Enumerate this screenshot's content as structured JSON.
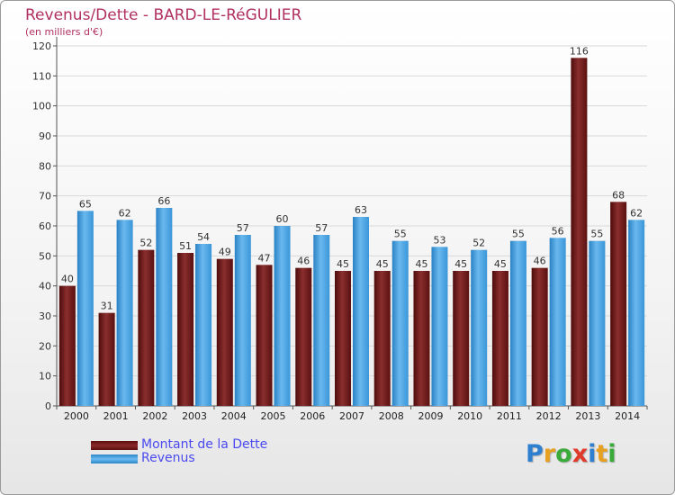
{
  "chart_data": {
    "type": "bar",
    "title": "Revenus/Dette - BARD-LE-RéGULIER",
    "subtitle": "(en milliers d'€)",
    "categories": [
      "2000",
      "2001",
      "2002",
      "2003",
      "2004",
      "2005",
      "2006",
      "2007",
      "2008",
      "2009",
      "2010",
      "2011",
      "2012",
      "2013",
      "2014"
    ],
    "series": [
      {
        "name": "Montant de la Dette",
        "color": "#7a1c1c",
        "values": [
          40,
          31,
          52,
          51,
          49,
          47,
          46,
          45,
          45,
          45,
          45,
          45,
          46,
          116,
          68
        ]
      },
      {
        "name": "Revenus",
        "color": "#4aa3e6",
        "values": [
          65,
          62,
          66,
          54,
          57,
          60,
          57,
          63,
          55,
          53,
          52,
          55,
          56,
          55,
          62
        ]
      }
    ],
    "ylim": [
      0,
      120
    ],
    "yticks": [
      0,
      10,
      20,
      30,
      40,
      50,
      60,
      70,
      80,
      90,
      100,
      110,
      120
    ],
    "grid": true,
    "legend_position": "bottom-left"
  },
  "legend": {
    "items": [
      {
        "label": "Montant de la Dette",
        "color": "#7a1c1c"
      },
      {
        "label": "Revenus",
        "color": "#4aa3e6"
      }
    ]
  },
  "logo": {
    "text": "Proxiti",
    "letters": [
      {
        "ch": "P",
        "color": "#2f7fd0"
      },
      {
        "ch": "r",
        "color": "#e8a020"
      },
      {
        "ch": "o",
        "color": "#3aaa3a"
      },
      {
        "ch": "x",
        "color": "#e03a2a"
      },
      {
        "ch": "i",
        "color": "#2f7fd0"
      },
      {
        "ch": "t",
        "color": "#e8a020"
      },
      {
        "ch": "i",
        "color": "#3aaa3a"
      }
    ]
  }
}
